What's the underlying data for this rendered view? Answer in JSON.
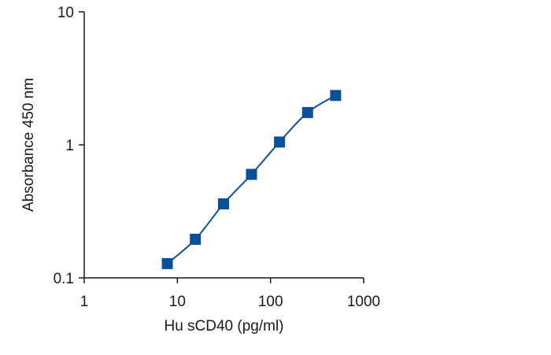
{
  "chart_data": {
    "type": "scatter",
    "title": "",
    "xlabel": "Hu sCD40 (pg/ml)",
    "ylabel": "Absorbance 450 nm",
    "xscale": "log",
    "yscale": "log",
    "xlim": [
      1,
      1000
    ],
    "ylim": [
      0.1,
      10
    ],
    "xticks": [
      1,
      10,
      100,
      1000
    ],
    "xtick_labels": [
      "1",
      "10",
      "100",
      "1000"
    ],
    "yticks": [
      0.1,
      1,
      10
    ],
    "ytick_labels": [
      "0.1",
      "1",
      "10"
    ],
    "grid": false,
    "legend": "none",
    "series": [
      {
        "x": [
          7.8,
          15.6,
          31.3,
          62.5,
          125,
          250,
          500
        ],
        "y": [
          0.128,
          0.195,
          0.36,
          0.6,
          1.05,
          1.75,
          2.35
        ],
        "color": "#0a4f9c",
        "marker": "square",
        "fit_line": true
      }
    ]
  }
}
